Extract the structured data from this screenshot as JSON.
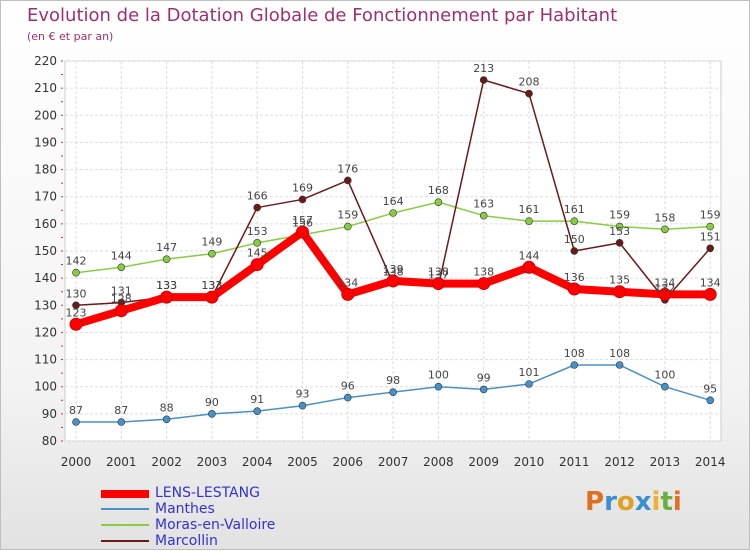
{
  "title": "Evolution de la Dotation Globale de Fonctionnement par Habitant",
  "subtitle": "(en € et par an)",
  "logo_text": "Proxiti",
  "chart_data": {
    "type": "line",
    "x": [
      "2000",
      "2001",
      "2002",
      "2003",
      "2004",
      "2005",
      "2006",
      "2007",
      "2008",
      "2009",
      "2010",
      "2011",
      "2012",
      "2013",
      "2014"
    ],
    "ylim": [
      80,
      220
    ],
    "yticks": [
      80,
      90,
      100,
      110,
      120,
      130,
      140,
      150,
      160,
      170,
      180,
      190,
      200,
      210,
      220
    ],
    "grid": true,
    "legend_position": "bottom-left",
    "series": [
      {
        "name": "LENS-LESTANG",
        "color": "#ff0000",
        "values": [
          123,
          128,
          133,
          133,
          145,
          157,
          134,
          139,
          138,
          138,
          144,
          136,
          135,
          134,
          134
        ]
      },
      {
        "name": "Manthes",
        "color": "#4a90c8",
        "values": [
          87,
          87,
          88,
          90,
          91,
          93,
          96,
          98,
          100,
          99,
          101,
          108,
          108,
          100,
          95
        ]
      },
      {
        "name": "Moras-en-Valloire",
        "color": "#88cc44",
        "values": [
          142,
          144,
          147,
          149,
          153,
          156,
          159,
          164,
          168,
          163,
          161,
          161,
          159,
          158,
          159
        ]
      },
      {
        "name": "Marcollin",
        "color": "#6b1a1a",
        "values": [
          130,
          131,
          133,
          133,
          166,
          169,
          176,
          138,
          137,
          213,
          208,
          150,
          153,
          132,
          151
        ]
      }
    ]
  }
}
